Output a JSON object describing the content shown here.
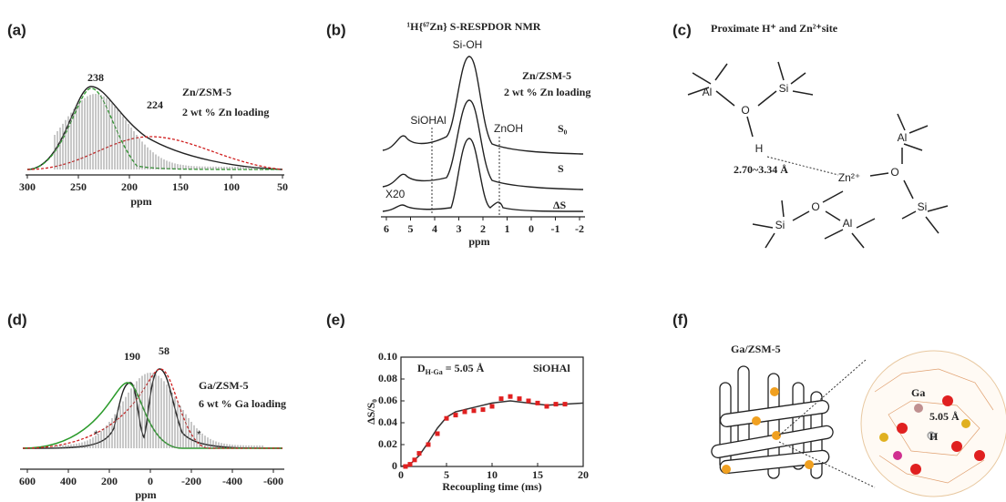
{
  "panels": {
    "a": {
      "label": "(a)",
      "peaks": [
        "238",
        "224"
      ],
      "sample": "Zn/ZSM-5",
      "loading": "2 wt % Zn loading",
      "xlabel": "ppm",
      "xlim": [
        300,
        50
      ],
      "xticks": [
        300,
        250,
        200,
        150,
        100,
        50
      ]
    },
    "b": {
      "label": "(b)",
      "title": "¹H{⁶⁷Zn} S-RESPDOR NMR",
      "peaks": [
        "Si-OH",
        "SiOHAl",
        "ZnOH"
      ],
      "sample": "Zn/ZSM-5",
      "loading": "2 wt % Zn loading",
      "traces": [
        "S₀",
        "S",
        "ΔS"
      ],
      "scale": "X20",
      "xlabel": "ppm",
      "xlim": [
        6,
        -2
      ],
      "xticks": [
        6,
        5,
        4,
        3,
        2,
        1,
        0,
        -1,
        -2
      ]
    },
    "c": {
      "label": "(c)",
      "title": "Proximate H⁺ and Zn²⁺site",
      "atoms": [
        "Al",
        "O",
        "Si",
        "H",
        "Zn²⁺",
        "O",
        "Al",
        "Si",
        "O",
        "Si",
        "Al"
      ],
      "distance": "2.70~3.34 Å"
    },
    "d": {
      "label": "(d)",
      "peaks": [
        "190",
        "58"
      ],
      "sample": "Ga/ZSM-5",
      "loading": "6 wt % Ga loading",
      "spinning": [
        "*",
        "*"
      ],
      "xlabel": "ppm",
      "xlim": [
        600,
        -600
      ],
      "xticks": [
        600,
        400,
        200,
        0,
        -200,
        -400,
        -600
      ]
    },
    "f": {
      "label": "(f)",
      "title": "Ga/ZSM-5",
      "atoms": [
        "Ga",
        "H"
      ],
      "distance": "5.05 Å"
    }
  },
  "chart_data": {
    "type": "scatter",
    "label": "(e)",
    "annotation": {
      "main": "D",
      "sub": "H-Ga",
      "rest": " = 5.05 Å"
    },
    "site": "SiOHAl",
    "xlabel": "Recoupling time (ms)",
    "ylabel": "ΔS/S₀",
    "xlim": [
      0,
      20
    ],
    "xticks": [
      0,
      5,
      10,
      15,
      20
    ],
    "ylim": [
      0,
      0.1
    ],
    "yticks": [
      0,
      0.02,
      0.04,
      0.06,
      0.08,
      {
        "value": 0.1,
        "label": "0.10"
      }
    ],
    "x": [
      0.5,
      1,
      1.5,
      2,
      3,
      4,
      5,
      6,
      7,
      8,
      9,
      10,
      11,
      12,
      13,
      14,
      15,
      16,
      17,
      18
    ],
    "series": [
      {
        "color": "#e02020",
        "values": [
          0,
          0.002,
          0.006,
          0.012,
          0.02,
          0.03,
          0.044,
          0.047,
          0.05,
          0.051,
          0.052,
          0.055,
          0.062,
          0.064,
          0.062,
          0.06,
          0.058,
          0.055,
          0.057,
          0.057
        ]
      }
    ],
    "fit": {
      "color": "#333333",
      "x": [
        0,
        1,
        2,
        3,
        4,
        5,
        6,
        8,
        10,
        12,
        14,
        16,
        18,
        20
      ],
      "values": [
        0,
        0.002,
        0.01,
        0.022,
        0.035,
        0.045,
        0.05,
        0.054,
        0.058,
        0.06,
        0.058,
        0.056,
        0.057,
        0.058
      ]
    }
  }
}
